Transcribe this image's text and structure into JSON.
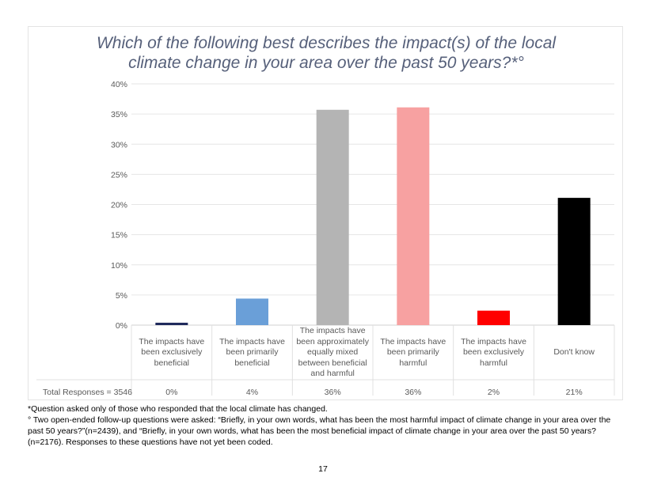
{
  "chart_data": {
    "type": "bar",
    "title": "Which of the following best describes the impact(s) of the local climate change in your area over the past 50 years?*°",
    "title_lines": [
      "Which of the following best describes the impact(s) of the local",
      "climate change in your area over the past 50 years?*°"
    ],
    "categories": [
      "The impacts have been exclusively beneficial",
      "The impacts have been primarily beneficial",
      "The impacts have been approximately equally mixed between beneficial and harmful",
      "The impacts have been primarily harmful",
      "The impacts have been exclusively harmful",
      "Don't know"
    ],
    "values": [
      0.4,
      4.4,
      35.7,
      36.1,
      2.4,
      21.1
    ],
    "colors": [
      "#1f2a5c",
      "#6a9fd8",
      "#b4b4b4",
      "#f7a1a1",
      "#ff0000",
      "#000000"
    ],
    "ylim": [
      0,
      40
    ],
    "yticks": [
      0,
      5,
      10,
      15,
      20,
      25,
      30,
      35,
      40
    ],
    "ytick_labels": [
      "0%",
      "5%",
      "10%",
      "15%",
      "20%",
      "25%",
      "30%",
      "35%",
      "40%"
    ],
    "xlabel": "",
    "ylabel": "",
    "grid": true,
    "table_row": {
      "label": "Total Responses =",
      "total": "3546",
      "values": [
        "0%",
        "4%",
        "36%",
        "36%",
        "2%",
        "21%"
      ]
    }
  },
  "footnotes": {
    "note1": "*Question asked only of those who responded that the local climate has changed.",
    "note2": "° Two open-ended follow-up questions were asked: “Briefly, in your own words, what has been the most harmful impact of climate change in your area over the past 50 years?”(n=2439), and “Briefly, in your own words, what has been the most beneficial impact of climate change in your area over the past 50 years? (n=2176). Responses to these questions have not yet been coded."
  },
  "page": {
    "number": "17"
  }
}
